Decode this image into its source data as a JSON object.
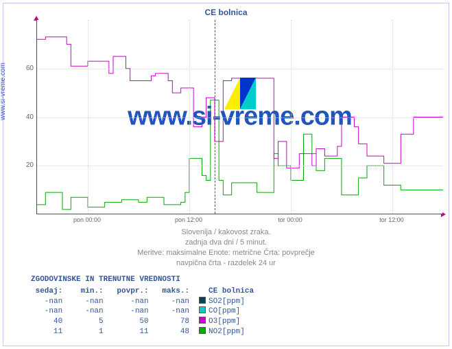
{
  "chart": {
    "title": "CE bolnica",
    "vlabel": "www.si-vreme.com",
    "watermark": "www.si-vreme.com",
    "bg": "#ffffff",
    "frame_color": "#c8c8e8",
    "axis_color": "#cc0088",
    "grid_color": "#d8d8d8",
    "day_divider_color": "#cc00cc",
    "yaxis": {
      "min": 0,
      "max": 80,
      "ticks": [
        20,
        40,
        60
      ]
    },
    "xaxis": {
      "min": 0,
      "max": 48,
      "majors": [
        6,
        18,
        30,
        42
      ],
      "labels": [
        "pon 00:00",
        "pon 12:00",
        "tor 00:00",
        "tor 12:00"
      ],
      "minors": [
        0,
        12,
        24,
        36,
        48
      ],
      "day_divider": 21
    },
    "series": {
      "o3": {
        "color": "#cc00cc",
        "points": [
          [
            0,
            72
          ],
          [
            1,
            73
          ],
          [
            2,
            73
          ],
          [
            3,
            73
          ],
          [
            3.5,
            70
          ],
          [
            4,
            61
          ],
          [
            5,
            61
          ],
          [
            6,
            63
          ],
          [
            7,
            63
          ],
          [
            8,
            63
          ],
          [
            8.5,
            58
          ],
          [
            9,
            65
          ],
          [
            10,
            65
          ],
          [
            10.5,
            60
          ],
          [
            11,
            55
          ],
          [
            12,
            55
          ],
          [
            13,
            55
          ],
          [
            13.5,
            57
          ],
          [
            14,
            58
          ],
          [
            15,
            58
          ],
          [
            15.5,
            55
          ],
          [
            16,
            50
          ],
          [
            17,
            52
          ],
          [
            18,
            52
          ],
          [
            18.5,
            36
          ],
          [
            19,
            36
          ],
          [
            19.5,
            40
          ],
          [
            20,
            48
          ],
          [
            20.5,
            48
          ],
          [
            21,
            30
          ],
          [
            22,
            55
          ],
          [
            23,
            56
          ],
          [
            24,
            56
          ],
          [
            25,
            56
          ],
          [
            26,
            56
          ],
          [
            27,
            56
          ],
          [
            28,
            23
          ],
          [
            28.5,
            30
          ],
          [
            29,
            30
          ],
          [
            29.5,
            19
          ],
          [
            30,
            19
          ],
          [
            31,
            25
          ],
          [
            32,
            25
          ],
          [
            32.5,
            20
          ],
          [
            33,
            27
          ],
          [
            34,
            24
          ],
          [
            35,
            24
          ],
          [
            35.5,
            28
          ],
          [
            36,
            40
          ],
          [
            37,
            40
          ],
          [
            37.5,
            36
          ],
          [
            38,
            29
          ],
          [
            39,
            24
          ],
          [
            40,
            24
          ],
          [
            41,
            21
          ],
          [
            42,
            21
          ],
          [
            43,
            33
          ],
          [
            44,
            33
          ],
          [
            44.5,
            40
          ],
          [
            45,
            40
          ],
          [
            46,
            40
          ],
          [
            47,
            40
          ],
          [
            48,
            40
          ]
        ]
      },
      "no2": {
        "color": "#00aa00",
        "points": [
          [
            0,
            4
          ],
          [
            1,
            9
          ],
          [
            2,
            9
          ],
          [
            3,
            2
          ],
          [
            4,
            7
          ],
          [
            5,
            7
          ],
          [
            6,
            3
          ],
          [
            7,
            3
          ],
          [
            8,
            5
          ],
          [
            9,
            5
          ],
          [
            10,
            6
          ],
          [
            11,
            6
          ],
          [
            12,
            5
          ],
          [
            13,
            7
          ],
          [
            14,
            7
          ],
          [
            15,
            4
          ],
          [
            16,
            4
          ],
          [
            17,
            5
          ],
          [
            17.5,
            9
          ],
          [
            18,
            23
          ],
          [
            19,
            23
          ],
          [
            19.5,
            16
          ],
          [
            20,
            14
          ],
          [
            20.5,
            47
          ],
          [
            21,
            47
          ],
          [
            21.5,
            14
          ],
          [
            22,
            8
          ],
          [
            23,
            13
          ],
          [
            24,
            13
          ],
          [
            25,
            13
          ],
          [
            26,
            9
          ],
          [
            27,
            9
          ],
          [
            28,
            25
          ],
          [
            28.5,
            20
          ],
          [
            29,
            20
          ],
          [
            30,
            14
          ],
          [
            31,
            14
          ],
          [
            31.5,
            33
          ],
          [
            32,
            33
          ],
          [
            32.5,
            25
          ],
          [
            33,
            18
          ],
          [
            34,
            23
          ],
          [
            35,
            23
          ],
          [
            36,
            8
          ],
          [
            37,
            8
          ],
          [
            38,
            15
          ],
          [
            39,
            20
          ],
          [
            40,
            20
          ],
          [
            41,
            12
          ],
          [
            42,
            12
          ],
          [
            43,
            10
          ],
          [
            44,
            10
          ],
          [
            45,
            10
          ],
          [
            46,
            10
          ],
          [
            47,
            10
          ],
          [
            48,
            10
          ]
        ]
      }
    },
    "footer": [
      "Slovenija / kakovost zraka.",
      "zadnja dva dni / 5 minut.",
      "Meritve: maksimalne  Enote: metrične  Črta: povprečje",
      "navpična črta - razdelek 24 ur"
    ]
  },
  "legend": {
    "title": "ZGODOVINSKE IN TRENUTNE VREDNOSTI",
    "headers": [
      "sedaj:",
      "min.:",
      "povpr.:",
      "maks.:",
      "CE bolnica"
    ],
    "rows": [
      {
        "sedaj": "-nan",
        "min": "-nan",
        "povpr": "-nan",
        "maks": "-nan",
        "color": "#004455",
        "name": "SO2[ppm]"
      },
      {
        "sedaj": "-nan",
        "min": "-nan",
        "povpr": "-nan",
        "maks": "-nan",
        "color": "#00cccc",
        "name": "CO[ppm]"
      },
      {
        "sedaj": "40",
        "min": "5",
        "povpr": "50",
        "maks": "78",
        "color": "#cc00cc",
        "name": "O3[ppm]"
      },
      {
        "sedaj": "11",
        "min": "1",
        "povpr": "11",
        "maks": "48",
        "color": "#00aa00",
        "name": "NO2[ppm]"
      }
    ]
  }
}
